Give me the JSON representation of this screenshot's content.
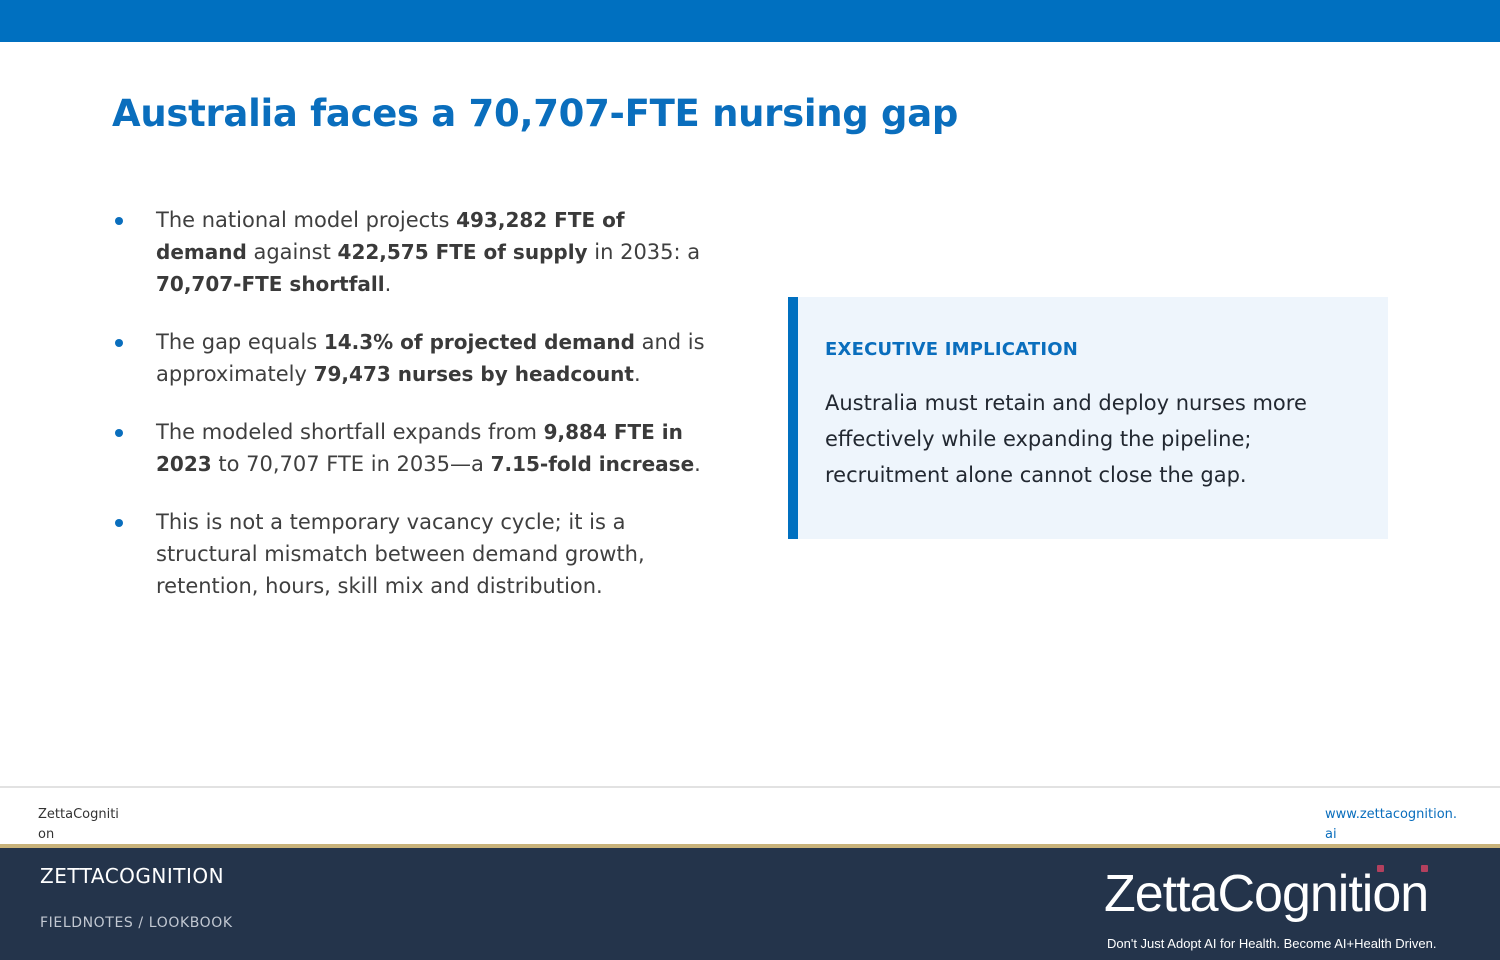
{
  "slide": {
    "title": "Australia faces a 70,707-FTE nursing gap"
  },
  "bullets": [
    {
      "segments": [
        {
          "text": "The national model projects ",
          "bold": false
        },
        {
          "text": "493,282 FTE of demand",
          "bold": true
        },
        {
          "text": " against ",
          "bold": false
        },
        {
          "text": "422,575 FTE of supply",
          "bold": true
        },
        {
          "text": " in 2035: a ",
          "bold": false
        },
        {
          "text": "70,707-FTE shortfall",
          "bold": true
        },
        {
          "text": ".",
          "bold": false
        }
      ]
    },
    {
      "segments": [
        {
          "text": "The gap equals ",
          "bold": false
        },
        {
          "text": "14.3% of projected demand",
          "bold": true
        },
        {
          "text": " and is approximately ",
          "bold": false
        },
        {
          "text": "79,473 nurses by headcount",
          "bold": true
        },
        {
          "text": ".",
          "bold": false
        }
      ]
    },
    {
      "segments": [
        {
          "text": "The modeled shortfall expands from ",
          "bold": false
        },
        {
          "text": "9,884 FTE in 2023",
          "bold": true
        },
        {
          "text": " to 70,707 FTE in 2035—a ",
          "bold": false
        },
        {
          "text": "7.15-fold increase",
          "bold": true
        },
        {
          "text": ".",
          "bold": false
        }
      ]
    },
    {
      "segments": [
        {
          "text": "This is not a temporary vacancy cycle; it is a structural mismatch between demand growth, retention, hours, skill mix and distribution.",
          "bold": false
        }
      ]
    }
  ],
  "callout": {
    "heading": "EXECUTIVE IMPLICATION",
    "text": "Australia must retain and deploy nurses more effectively while expanding the pipeline; recruitment alone cannot close the gap."
  },
  "footer": {
    "left_text": "ZettaCognition",
    "right_text": "www.zettacognition.ai"
  },
  "brand": {
    "name": "ZETTACOGNITION",
    "crumbs": "FIELDNOTES  /  LOOKBOOK",
    "logo_wordmark": "ZettaCognition",
    "logo_tagline": "Don't Just Adopt AI for Health. Become AI+Health Driven."
  },
  "colors": {
    "accent": "#0070C0",
    "title": "#0A6EBD",
    "callout_bg": "#EEF5FC",
    "band": "#24344B",
    "gold": "#C8B27A",
    "logo_dots": "#B3405E"
  }
}
